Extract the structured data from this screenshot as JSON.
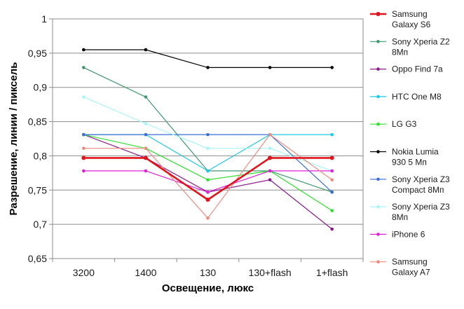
{
  "chart_data": {
    "type": "line",
    "categories": [
      "3200",
      "1400",
      "130",
      "130+flash",
      "1+flash"
    ],
    "xlabel": "Освещение,  люкс",
    "ylabel": "Разрешение,  линии / пиксель",
    "ylim": [
      0.65,
      1.0
    ],
    "yticks": [
      "0,65",
      "0,7",
      "0,75",
      "0,8",
      "0,85",
      "0,9",
      "0,95",
      "1"
    ],
    "grid": "horizontal",
    "legend_position": "right",
    "series": [
      {
        "name": "Samsung Galaxy S6",
        "legend_lines": [
          "Samsung",
          "Galaxy S6"
        ],
        "color": "#e0141c",
        "bold": true,
        "values": [
          0.797,
          0.797,
          0.736,
          0.797,
          0.797
        ]
      },
      {
        "name": "Sony Xperia Z2 8Мп",
        "legend_lines": [
          "Sony Xperia Z2",
          "8Мп"
        ],
        "color": "#3d9970",
        "values": [
          0.929,
          0.886,
          0.778,
          0.778,
          0.747
        ]
      },
      {
        "name": "Oppo Find 7a",
        "legend_lines": [
          "Oppo Find 7a"
        ],
        "color": "#8b1a8b",
        "values": [
          0.831,
          0.797,
          0.747,
          0.765,
          0.693
        ]
      },
      {
        "name": "HTC One M8",
        "legend_lines": [
          "HTC One M8"
        ],
        "color": "#1ec8e6",
        "values": [
          0.831,
          0.831,
          0.778,
          0.831,
          0.831
        ]
      },
      {
        "name": "LG G3",
        "legend_lines": [
          "LG G3"
        ],
        "color": "#2ee02e",
        "values": [
          0.831,
          0.811,
          0.765,
          0.778,
          0.72
        ]
      },
      {
        "name": "Nokia Lumia 930 5 Мп",
        "legend_lines": [
          "Nokia Lumia",
          "930 5 Мп"
        ],
        "color": "#000000",
        "values": [
          0.955,
          0.955,
          0.929,
          0.929,
          0.929
        ]
      },
      {
        "name": "Sony Xperia Z3 Compact 8Мп",
        "legend_lines": [
          "Sony Xperia Z3",
          "Compact 8Мп"
        ],
        "color": "#3a6fd8",
        "values": [
          0.831,
          0.831,
          0.831,
          0.831,
          0.747
        ]
      },
      {
        "name": "Sony Xperia Z3 8Мп",
        "legend_lines": [
          "Sony Xperia Z3",
          "8Мп"
        ],
        "color": "#a8f4f8",
        "values": [
          0.886,
          0.847,
          0.811,
          0.811,
          0.778
        ]
      },
      {
        "name": "iPhone 6",
        "legend_lines": [
          "iPhone 6"
        ],
        "color": "#e020d8",
        "values": [
          0.778,
          0.778,
          0.747,
          0.778,
          0.778
        ]
      },
      {
        "name": "Samsung Galaxy A7",
        "legend_lines": [
          "Samsung",
          "Galaxy A7"
        ],
        "color": "#f08a80",
        "values": [
          0.811,
          0.811,
          0.709,
          0.831,
          0.765
        ]
      }
    ]
  }
}
